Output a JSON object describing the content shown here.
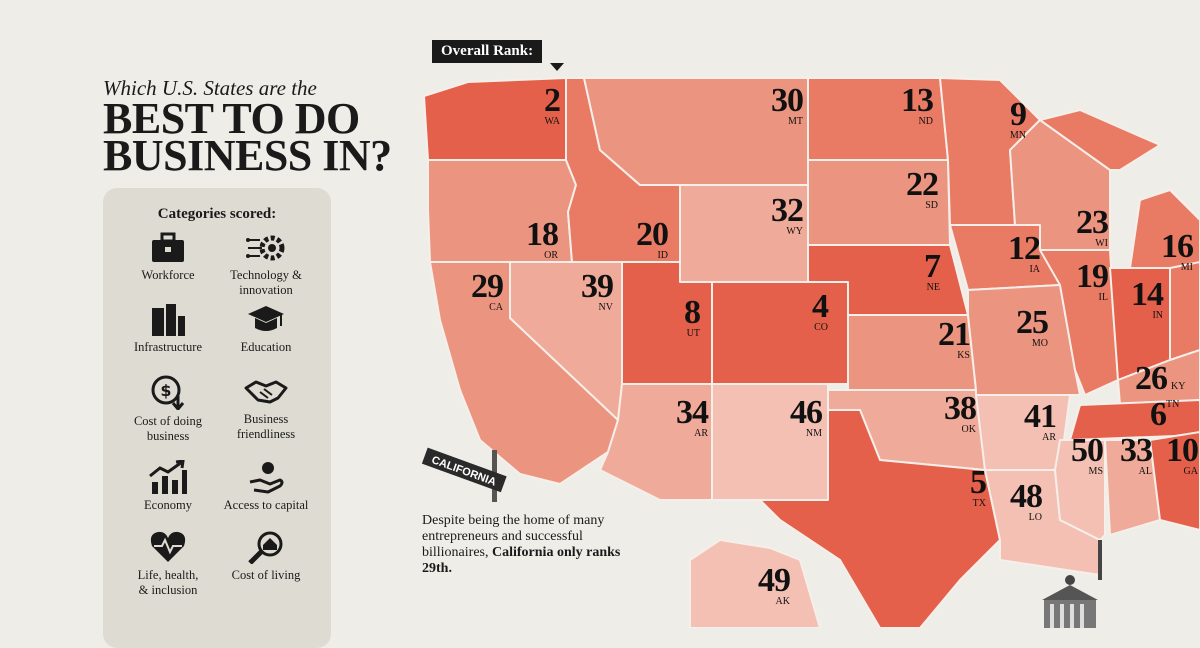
{
  "title": {
    "line1": "Which U.S. States are the",
    "line2": "BEST TO DO\nBUSINESS IN?"
  },
  "categories": {
    "heading": "Categories scored:",
    "items": [
      {
        "label": "Workforce",
        "icon": "briefcase-icon"
      },
      {
        "label": "Technology &\ninnovation",
        "icon": "gear-circuit-icon"
      },
      {
        "label": "Infrastructure",
        "icon": "buildings-icon"
      },
      {
        "label": "Education",
        "icon": "graduation-cap-icon"
      },
      {
        "label": "Cost of doing\nbusiness",
        "icon": "dollar-down-icon"
      },
      {
        "label": "Business\nfriendliness",
        "icon": "handshake-icon"
      },
      {
        "label": "Economy",
        "icon": "bar-chart-up-icon"
      },
      {
        "label": "Access to capital",
        "icon": "hand-coin-icon"
      },
      {
        "label": "Life, health,\n& inclusion",
        "icon": "heart-pulse-icon"
      },
      {
        "label": "Cost of living",
        "icon": "house-search-icon"
      }
    ]
  },
  "legend_label": "Overall Rank:",
  "states": [
    {
      "abbr": "WA",
      "rank": "2"
    },
    {
      "abbr": "MT",
      "rank": "30"
    },
    {
      "abbr": "ND",
      "rank": "13"
    },
    {
      "abbr": "MN",
      "rank": "9"
    },
    {
      "abbr": "SD",
      "rank": "22"
    },
    {
      "abbr": "WY",
      "rank": "32"
    },
    {
      "abbr": "OR",
      "rank": "18"
    },
    {
      "abbr": "ID",
      "rank": "20"
    },
    {
      "abbr": "WI",
      "rank": "23"
    },
    {
      "abbr": "MI",
      "rank": "16"
    },
    {
      "abbr": "IA",
      "rank": "12"
    },
    {
      "abbr": "NE",
      "rank": "7"
    },
    {
      "abbr": "CA",
      "rank": "29"
    },
    {
      "abbr": "NV",
      "rank": "39"
    },
    {
      "abbr": "UT",
      "rank": "8"
    },
    {
      "abbr": "CO",
      "rank": "4"
    },
    {
      "abbr": "IL",
      "rank": "19"
    },
    {
      "abbr": "IN",
      "rank": "14"
    },
    {
      "abbr": "KS",
      "rank": "21"
    },
    {
      "abbr": "MO",
      "rank": "25"
    },
    {
      "abbr": "KY",
      "rank": "26"
    },
    {
      "abbr": "AR",
      "rank": "34"
    },
    {
      "abbr": "NM",
      "rank": "46"
    },
    {
      "abbr": "OK",
      "rank": "38"
    },
    {
      "abbr": "AR",
      "rank": "41"
    },
    {
      "abbr": "TN",
      "rank": "6"
    },
    {
      "abbr": "MS",
      "rank": "50"
    },
    {
      "abbr": "AL",
      "rank": "33"
    },
    {
      "abbr": "GA",
      "rank": "10"
    },
    {
      "abbr": "TX",
      "rank": "5"
    },
    {
      "abbr": "LO",
      "rank": "48"
    },
    {
      "abbr": "AK",
      "rank": "49"
    }
  ],
  "sign_text": "CALIFORNIA",
  "note": {
    "text": "Despite being the home of many entrepreneurs and successful billionaires,",
    "bold": "California only ranks 29th."
  },
  "colors": {
    "rank_1_10": "#e4604a",
    "rank_11_20": "#e97a63",
    "rank_21_30": "#eb9480",
    "rank_31_40": "#f0aa99",
    "rank_41_50": "#f3c0b3",
    "background": "#efede8",
    "panel": "#dedcd2"
  }
}
